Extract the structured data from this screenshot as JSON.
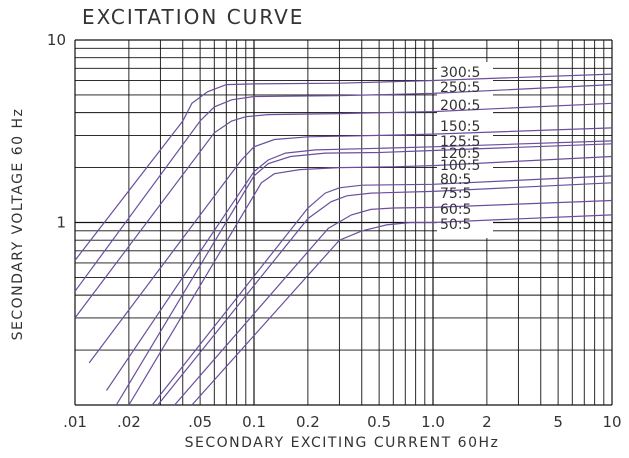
{
  "chart_data": {
    "type": "line",
    "title": "EXCITATION CURVE",
    "xlabel": "SECONDARY EXCITING CURRENT 60Hz",
    "ylabel": "SECONDARY VOLTAGE 60 Hz",
    "x_scale": "log",
    "y_scale": "log",
    "xlim": [
      0.01,
      10
    ],
    "ylim": [
      0.1,
      10
    ],
    "grid": true,
    "x_tick_labels": [
      {
        "value": 0.01,
        "label": ".01"
      },
      {
        "value": 0.02,
        "label": ".02"
      },
      {
        "value": 0.05,
        "label": ".05"
      },
      {
        "value": 0.1,
        "label": "0.1"
      },
      {
        "value": 0.2,
        "label": "0.2"
      },
      {
        "value": 0.5,
        "label": "0.5"
      },
      {
        "value": 1,
        "label": "1.0"
      },
      {
        "value": 2,
        "label": "2"
      },
      {
        "value": 5,
        "label": "5"
      },
      {
        "value": 10,
        "label": "10"
      }
    ],
    "y_tick_labels": [
      {
        "value": 1,
        "label": "1"
      },
      {
        "value": 10,
        "label": "10"
      }
    ],
    "line_color": "#6a4f9e",
    "series": [
      {
        "name": "300:5",
        "x": [
          0.01,
          0.04,
          0.045,
          0.055,
          0.07,
          0.1,
          0.3,
          1,
          10
        ],
        "y": [
          0.62,
          3.6,
          4.5,
          5.2,
          5.7,
          5.75,
          5.8,
          6.0,
          6.5
        ]
      },
      {
        "name": "250:5",
        "x": [
          0.01,
          0.05,
          0.06,
          0.075,
          0.1,
          0.3,
          1,
          10
        ],
        "y": [
          0.42,
          3.6,
          4.3,
          4.7,
          4.9,
          4.95,
          5.1,
          5.7
        ]
      },
      {
        "name": "200:5",
        "x": [
          0.01,
          0.06,
          0.075,
          0.09,
          0.12,
          0.3,
          1,
          10
        ],
        "y": [
          0.3,
          3.1,
          3.6,
          3.8,
          3.9,
          3.95,
          4.05,
          4.5
        ]
      },
      {
        "name": "150:5",
        "x": [
          0.012,
          0.085,
          0.1,
          0.13,
          0.2,
          0.5,
          1,
          10
        ],
        "y": [
          0.17,
          2.2,
          2.6,
          2.85,
          2.95,
          3.0,
          3.05,
          3.3
        ]
      },
      {
        "name": "125:5",
        "x": [
          0.015,
          0.1,
          0.12,
          0.15,
          0.22,
          0.5,
          1,
          10
        ],
        "y": [
          0.12,
          1.9,
          2.2,
          2.4,
          2.5,
          2.55,
          2.6,
          2.8
        ]
      },
      {
        "name": "120:5",
        "x": [
          0.017,
          0.1,
          0.12,
          0.16,
          0.25,
          0.5,
          1,
          10
        ],
        "y": [
          0.1,
          1.8,
          2.1,
          2.3,
          2.4,
          2.42,
          2.48,
          2.7
        ]
      },
      {
        "name": "100:5",
        "x": [
          0.02,
          0.11,
          0.13,
          0.18,
          0.3,
          0.6,
          1,
          10
        ],
        "y": [
          0.1,
          1.65,
          1.85,
          1.95,
          2.0,
          2.02,
          2.05,
          2.3
        ]
      },
      {
        "name": "80:5",
        "x": [
          0.027,
          0.2,
          0.25,
          0.3,
          0.4,
          1,
          10
        ],
        "y": [
          0.1,
          1.2,
          1.45,
          1.55,
          1.6,
          1.62,
          1.8
        ]
      },
      {
        "name": "75:5",
        "x": [
          0.029,
          0.2,
          0.27,
          0.33,
          0.45,
          1,
          10
        ],
        "y": [
          0.1,
          1.05,
          1.3,
          1.4,
          1.45,
          1.48,
          1.65
        ]
      },
      {
        "name": "60:5",
        "x": [
          0.036,
          0.26,
          0.35,
          0.45,
          0.6,
          1,
          10
        ],
        "y": [
          0.1,
          0.93,
          1.1,
          1.18,
          1.2,
          1.21,
          1.32
        ]
      },
      {
        "name": "50:5",
        "x": [
          0.045,
          0.3,
          0.4,
          0.55,
          0.75,
          1,
          10
        ],
        "y": [
          0.1,
          0.8,
          0.9,
          0.97,
          1.0,
          1.0,
          1.1
        ]
      }
    ]
  }
}
